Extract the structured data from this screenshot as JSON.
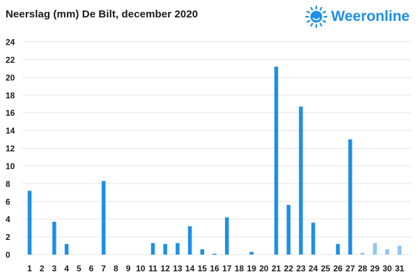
{
  "title": "Neerslag (mm) De Bilt, december 2020",
  "brand": {
    "name": "Weeronline",
    "logo_icon": "sun-icon",
    "color": "#1e90e8"
  },
  "chart_data": {
    "type": "bar",
    "title": "Neerslag (mm) De Bilt, december 2020",
    "xlabel": "",
    "ylabel": "",
    "ylim": [
      0,
      24
    ],
    "yticks": [
      0,
      2,
      4,
      6,
      8,
      10,
      12,
      14,
      16,
      18,
      20,
      22,
      24
    ],
    "grid": true,
    "legend": "none",
    "categories": [
      "1",
      "2",
      "3",
      "4",
      "5",
      "6",
      "7",
      "8",
      "9",
      "10",
      "11",
      "12",
      "13",
      "14",
      "15",
      "16",
      "17",
      "18",
      "19",
      "20",
      "21",
      "22",
      "23",
      "24",
      "25",
      "26",
      "27",
      "28",
      "29",
      "30",
      "31"
    ],
    "values": [
      7.2,
      0,
      3.7,
      1.2,
      0,
      0,
      8.3,
      0,
      0,
      0,
      1.3,
      1.2,
      1.3,
      3.2,
      0.6,
      0.1,
      4.2,
      0,
      0.3,
      0,
      21.2,
      5.6,
      16.7,
      3.6,
      0,
      1.2,
      13.0,
      0.2,
      1.3,
      0.6,
      1.0
    ],
    "forecast_from_day": 28,
    "colors": {
      "observed": "#1e8fe6",
      "forecast": "#8ec5f4",
      "grid": "#e4e4e4"
    }
  }
}
